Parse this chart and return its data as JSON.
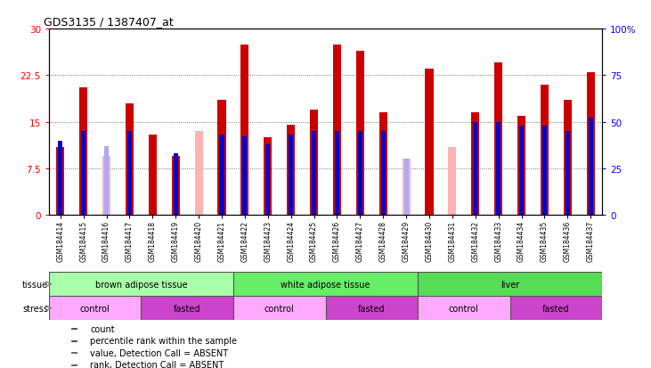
{
  "title": "GDS3135 / 1387407_at",
  "samples": [
    "GSM184414",
    "GSM184415",
    "GSM184416",
    "GSM184417",
    "GSM184418",
    "GSM184419",
    "GSM184420",
    "GSM184421",
    "GSM184422",
    "GSM184423",
    "GSM184424",
    "GSM184425",
    "GSM184426",
    "GSM184427",
    "GSM184428",
    "GSM184429",
    "GSM184430",
    "GSM184431",
    "GSM184432",
    "GSM184433",
    "GSM184434",
    "GSM184435",
    "GSM184436",
    "GSM184437"
  ],
  "count_values": [
    11.0,
    20.5,
    9.5,
    18.0,
    13.0,
    9.5,
    13.5,
    18.5,
    27.5,
    12.5,
    14.5,
    17.0,
    27.5,
    26.5,
    16.5,
    9.0,
    23.5,
    11.0,
    16.5,
    24.5,
    16.0,
    21.0,
    18.5,
    23.0
  ],
  "rank_values": [
    40.0,
    45.0,
    37.0,
    45.0,
    0.0,
    33.0,
    0.0,
    43.0,
    42.0,
    38.0,
    43.0,
    45.0,
    45.0,
    45.0,
    45.0,
    30.0,
    0.0,
    0.0,
    50.0,
    50.0,
    48.0,
    48.0,
    45.0,
    52.0
  ],
  "absent_count": [
    false,
    false,
    true,
    false,
    false,
    false,
    true,
    false,
    false,
    false,
    false,
    false,
    false,
    false,
    false,
    true,
    false,
    true,
    false,
    false,
    false,
    false,
    false,
    false
  ],
  "absent_rank": [
    false,
    false,
    true,
    false,
    false,
    false,
    true,
    false,
    false,
    false,
    false,
    false,
    false,
    false,
    false,
    true,
    false,
    true,
    false,
    false,
    false,
    false,
    false,
    false
  ],
  "count_present_color": "#cc0000",
  "count_absent_color": "#ffb3b3",
  "rank_present_color": "#0000cc",
  "rank_absent_color": "#aaaaff",
  "tissue_groups": [
    {
      "label": "brown adipose tissue",
      "start": 0,
      "end": 7,
      "color": "#aaffaa"
    },
    {
      "label": "white adipose tissue",
      "start": 8,
      "end": 15,
      "color": "#66ee66"
    },
    {
      "label": "liver",
      "start": 16,
      "end": 23,
      "color": "#55dd55"
    }
  ],
  "stress_groups": [
    {
      "label": "control",
      "start": 0,
      "end": 3,
      "color": "#ffaaff"
    },
    {
      "label": "fasted",
      "start": 4,
      "end": 7,
      "color": "#cc44cc"
    },
    {
      "label": "control",
      "start": 8,
      "end": 11,
      "color": "#ffaaff"
    },
    {
      "label": "fasted",
      "start": 12,
      "end": 15,
      "color": "#cc44cc"
    },
    {
      "label": "control",
      "start": 16,
      "end": 19,
      "color": "#ffaaff"
    },
    {
      "label": "fasted",
      "start": 20,
      "end": 23,
      "color": "#cc44cc"
    }
  ],
  "ylim_left": [
    0,
    30
  ],
  "ylim_right": [
    0,
    100
  ],
  "yticks_left": [
    0,
    7.5,
    15,
    22.5,
    30
  ],
  "yticks_right": [
    0,
    25,
    50,
    75,
    100
  ],
  "ytick_labels_left": [
    "0",
    "7.5",
    "15",
    "22.5",
    "30"
  ],
  "ytick_labels_right": [
    "0",
    "25",
    "50",
    "75",
    "100%"
  ],
  "bar_width": 0.35,
  "rank_bar_width": 0.2,
  "bg_color": "#c8c8c8",
  "plot_bg_color": "#ffffff",
  "grid_color": "#555555",
  "legend_items": [
    {
      "color": "#cc0000",
      "label": "count"
    },
    {
      "color": "#0000cc",
      "label": "percentile rank within the sample"
    },
    {
      "color": "#ffb3b3",
      "label": "value, Detection Call = ABSENT"
    },
    {
      "color": "#aaaaff",
      "label": "rank, Detection Call = ABSENT"
    }
  ]
}
